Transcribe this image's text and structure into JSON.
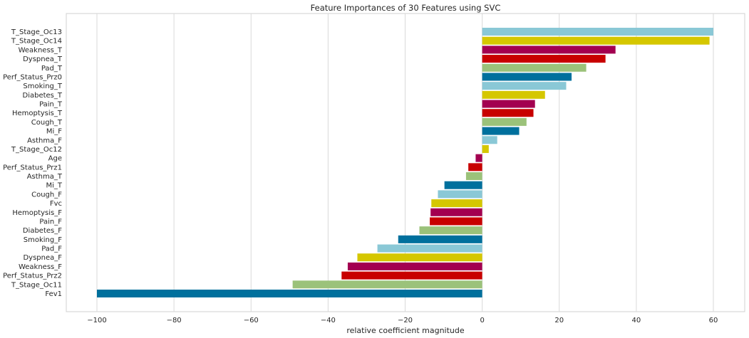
{
  "chart_data": {
    "type": "bar",
    "orientation": "horizontal",
    "title": "Feature Importances of 30 Features using SVC",
    "xlabel": "relative coefficient magnitude",
    "ylabel": "",
    "xlim": [
      -108,
      68
    ],
    "xticks": [
      -100,
      -80,
      -60,
      -40,
      -20,
      0,
      20,
      40,
      60
    ],
    "grid": "vertical",
    "categories": [
      "T_Stage_Oc13",
      "T_Stage_Oc14",
      "Weakness_T",
      "Dyspnea_T",
      "Pad_T",
      "Perf_Status_Prz0",
      "Smoking_T",
      "Diabetes_T",
      "Pain_T",
      "Hemoptysis_T",
      "Cough_T",
      "Mi_F",
      "Asthma_F",
      "T_Stage_Oc12",
      "Age",
      "Perf_Status_Prz1",
      "Asthma_T",
      "Mi_T",
      "Cough_F",
      "Fvc",
      "Hemoptysis_F",
      "Pain_F",
      "Diabetes_F",
      "Smoking_F",
      "Pad_F",
      "Dyspnea_F",
      "Weakness_F",
      "Perf_Status_Prz2",
      "T_Stage_Oc11",
      "Fev1"
    ],
    "values": [
      60.0,
      59.0,
      34.6,
      32.0,
      27.0,
      23.2,
      21.8,
      16.3,
      13.7,
      13.3,
      11.5,
      9.6,
      3.9,
      1.7,
      -1.7,
      -3.6,
      -4.2,
      -9.8,
      -11.5,
      -13.2,
      -13.4,
      -13.6,
      -16.3,
      -21.8,
      -27.2,
      -32.4,
      -34.9,
      -36.5,
      -49.2,
      -100.0
    ],
    "colors": [
      "#8ac8d6",
      "#d5c700",
      "#a30050",
      "#c80000",
      "#9bc27a",
      "#00709d",
      "#8ac8d6",
      "#d5c700",
      "#a30050",
      "#c80000",
      "#9bc27a",
      "#00709d",
      "#8ac8d6",
      "#d5c700",
      "#a30050",
      "#c80000",
      "#9bc27a",
      "#00709d",
      "#8ac8d6",
      "#d5c700",
      "#a30050",
      "#c80000",
      "#9bc27a",
      "#00709d",
      "#8ac8d6",
      "#d5c700",
      "#a30050",
      "#c80000",
      "#9bc27a",
      "#00709d"
    ]
  }
}
